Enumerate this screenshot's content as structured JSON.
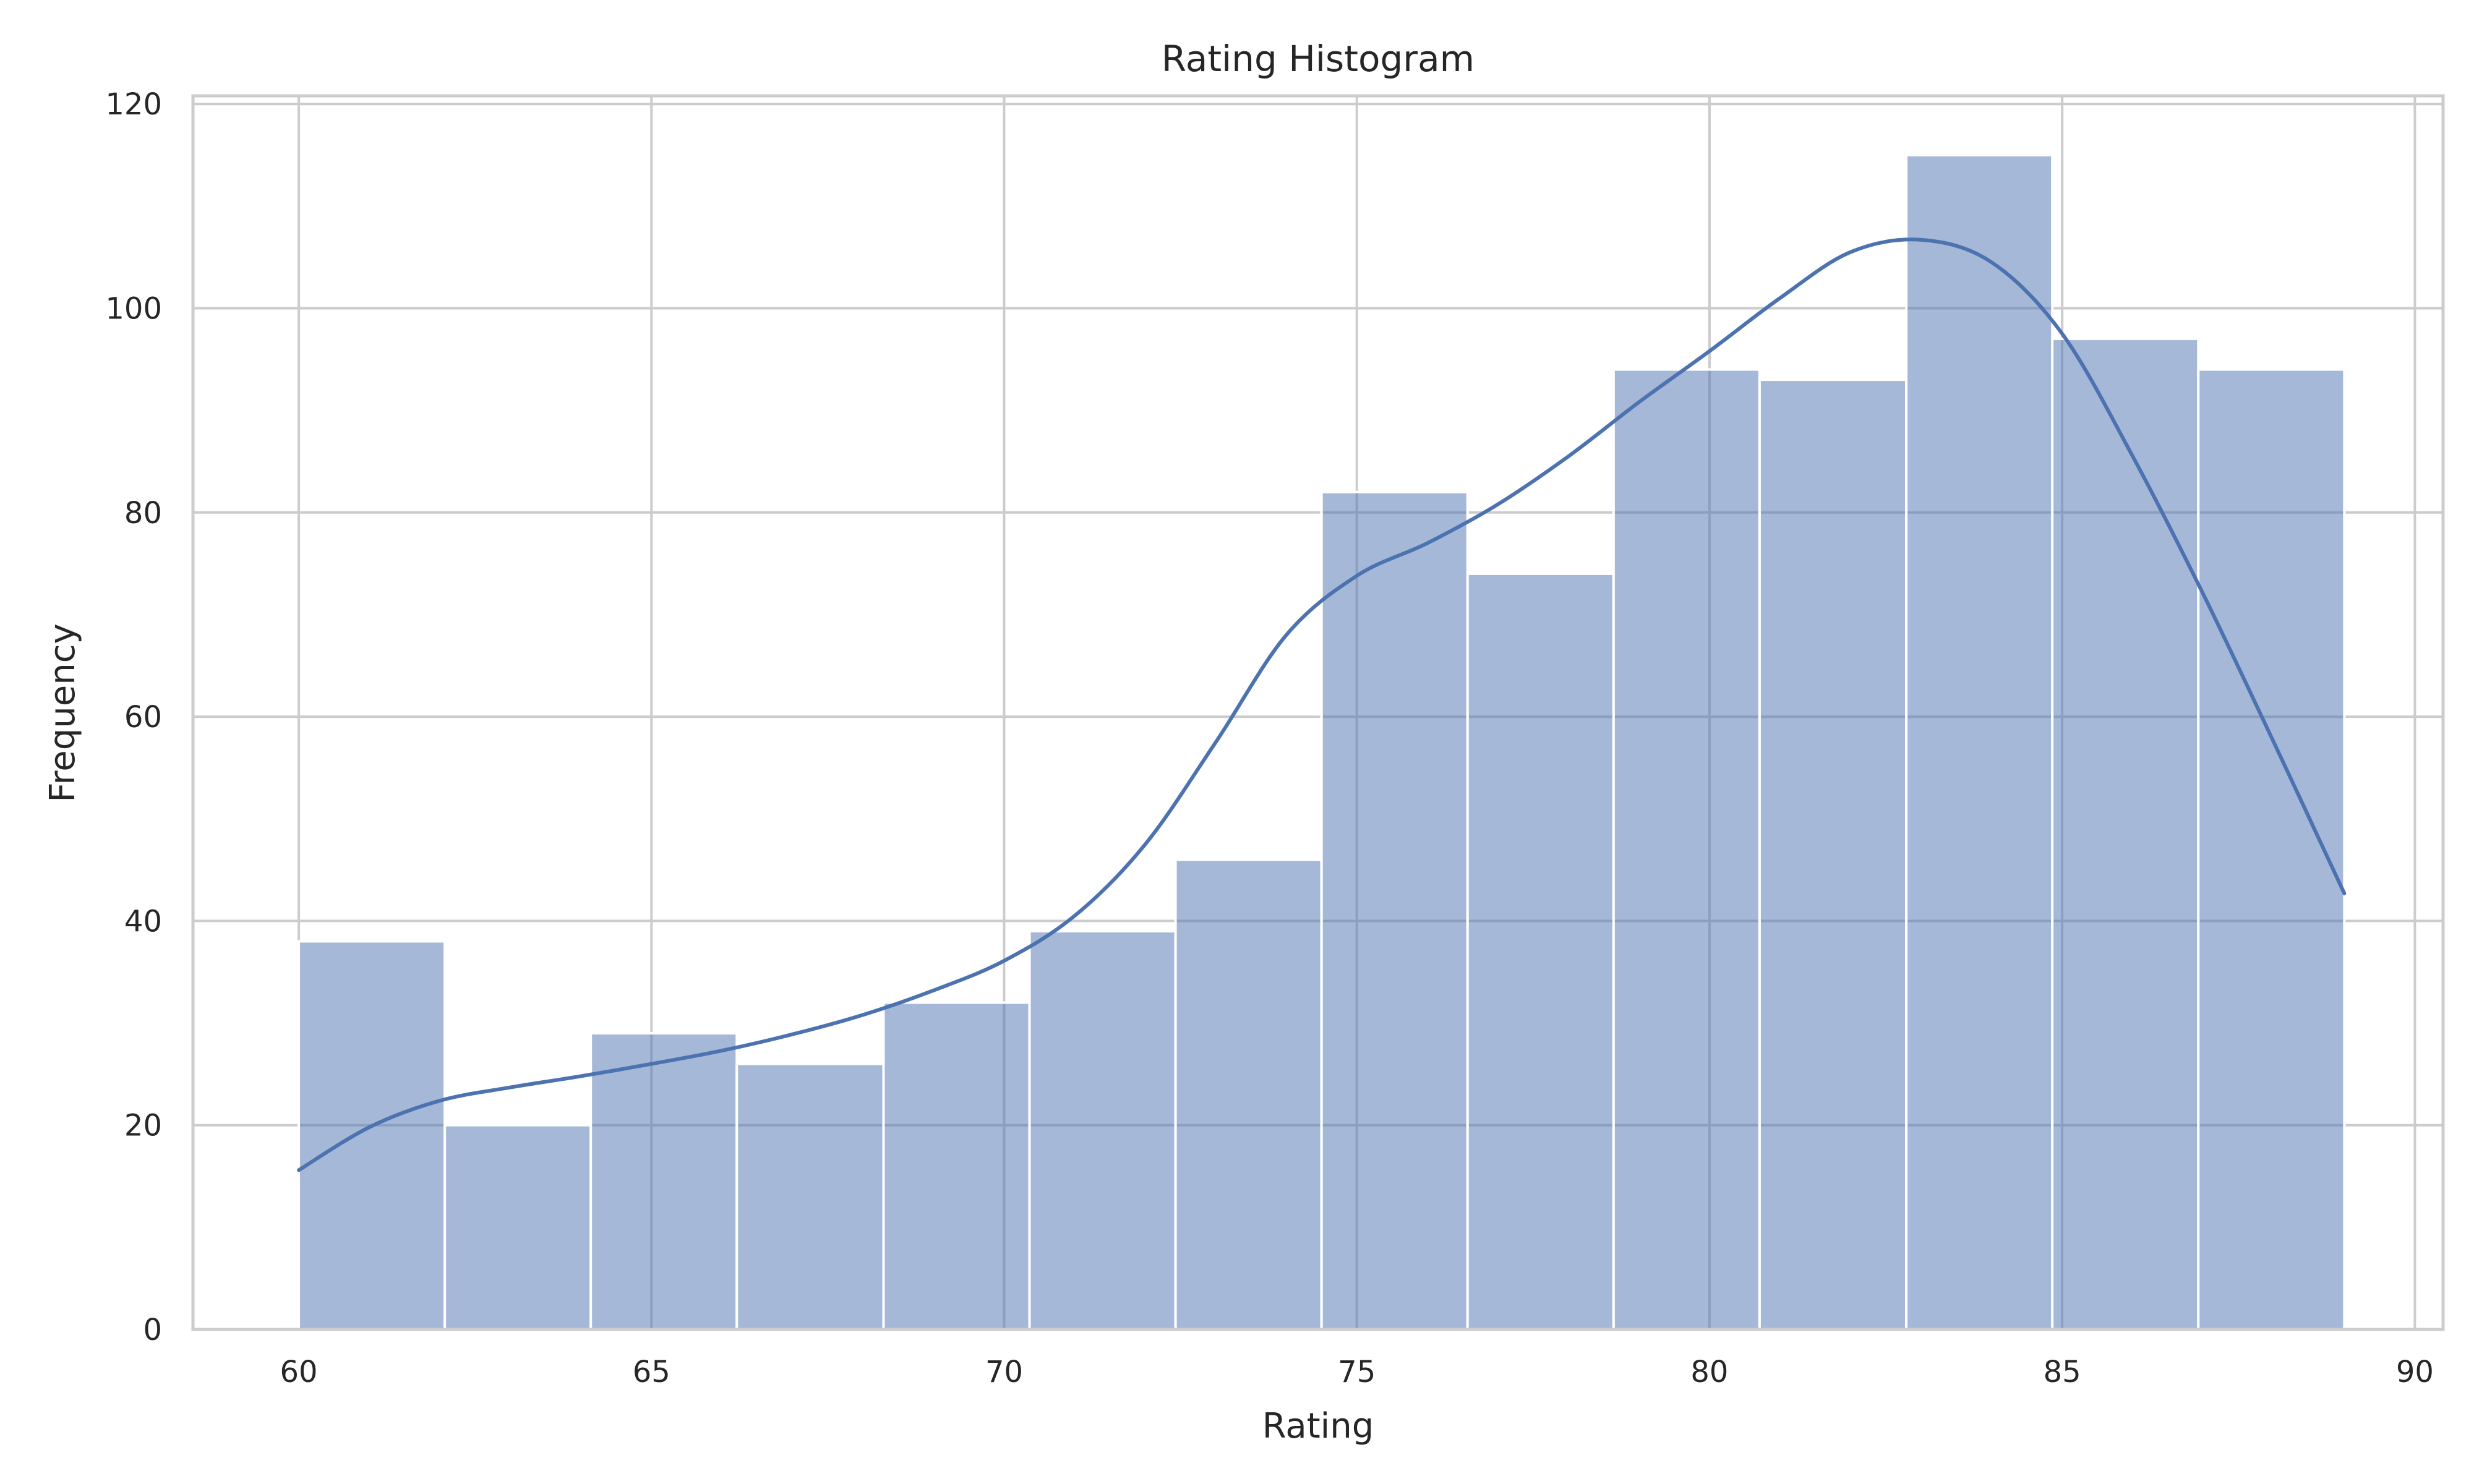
{
  "chart_data": {
    "type": "bar",
    "title": "Rating Histogram",
    "xlabel": "Rating",
    "ylabel": "Frequency",
    "xlim": [
      58.5,
      90.4
    ],
    "ylim": [
      0,
      120.8
    ],
    "xticks": [
      60,
      65,
      70,
      75,
      80,
      85,
      90
    ],
    "yticks": [
      0,
      20,
      40,
      60,
      80,
      100,
      120
    ],
    "grid": true,
    "bins": [
      {
        "start": 60.0,
        "end": 62.07,
        "count": 38
      },
      {
        "start": 62.07,
        "end": 64.14,
        "count": 20
      },
      {
        "start": 64.14,
        "end": 66.21,
        "count": 29
      },
      {
        "start": 66.21,
        "end": 68.29,
        "count": 26
      },
      {
        "start": 68.29,
        "end": 70.36,
        "count": 32
      },
      {
        "start": 70.36,
        "end": 72.43,
        "count": 39
      },
      {
        "start": 72.43,
        "end": 74.5,
        "count": 46
      },
      {
        "start": 74.5,
        "end": 76.57,
        "count": 82
      },
      {
        "start": 76.57,
        "end": 78.64,
        "count": 74
      },
      {
        "start": 78.64,
        "end": 80.71,
        "count": 94
      },
      {
        "start": 80.71,
        "end": 82.79,
        "count": 93
      },
      {
        "start": 82.79,
        "end": 84.86,
        "count": 115
      },
      {
        "start": 84.86,
        "end": 86.93,
        "count": 97
      },
      {
        "start": 86.93,
        "end": 89.0,
        "count": 94
      }
    ],
    "kde": {
      "x": [
        60,
        61,
        62,
        63,
        64,
        65,
        66,
        67,
        68,
        69,
        70,
        71,
        72,
        73,
        74,
        75,
        76,
        77,
        78,
        79,
        80,
        81,
        82,
        83,
        84,
        85,
        86,
        87,
        88,
        89
      ],
      "y": [
        15.6,
        19.8,
        22.4,
        23.7,
        24.8,
        26.0,
        27.3,
        28.9,
        30.8,
        33.2,
        36.1,
        40.5,
        47.5,
        57.5,
        68.0,
        73.8,
        77.0,
        80.8,
        85.5,
        90.8,
        95.8,
        101.0,
        105.5,
        106.7,
        104.5,
        97.5,
        85.5,
        72.0,
        57.5,
        42.7
      ]
    }
  }
}
